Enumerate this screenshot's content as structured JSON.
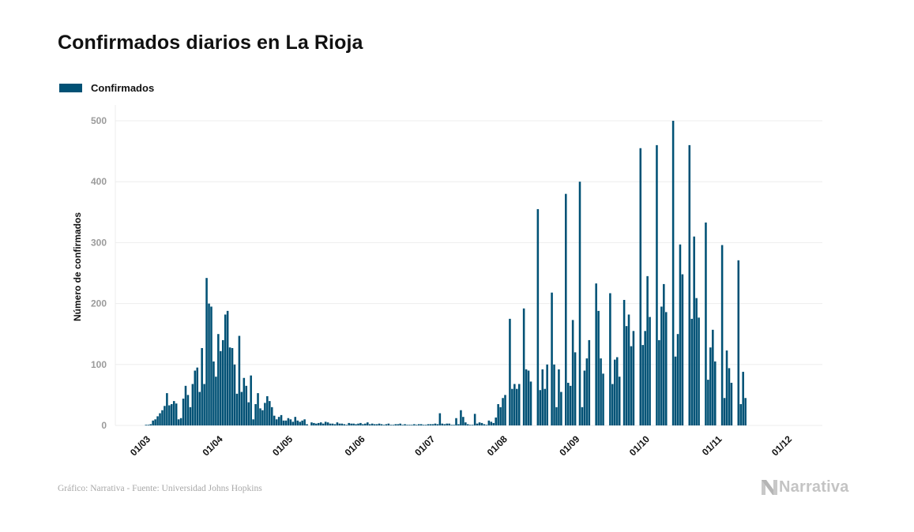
{
  "header": {
    "title": "Confirmados diarios en La Rioja"
  },
  "legend": {
    "items": [
      {
        "label": "Confirmados",
        "color": "#005175"
      }
    ]
  },
  "footer": {
    "source": "Gráfico: Narrativa - Fuente: Universidad Johns Hopkins",
    "logo_text": "Narrativa",
    "logo_icon": "narrativa-n-logo-icon"
  },
  "chart_data": {
    "type": "bar",
    "title": "Confirmados diarios en La Rioja",
    "xlabel": "",
    "ylabel": "Número de confirmados",
    "ylim": [
      0,
      525
    ],
    "yticks": [
      0,
      100,
      200,
      300,
      400,
      500
    ],
    "ytick_labels": [
      "0",
      "100",
      "200",
      "300",
      "400",
      "500"
    ],
    "grid": true,
    "legend_position": "top-left",
    "bar_color": "#005175",
    "x_start_date": "2020-03-01",
    "x_end_date": "2020-12-03",
    "xtick_labels": [
      "01/03",
      "01/04",
      "01/05",
      "01/06",
      "01/07",
      "01/08",
      "01/09",
      "01/10",
      "01/11",
      "01/12"
    ],
    "xtick_day_offsets": [
      0,
      31,
      61,
      92,
      122,
      153,
      184,
      214,
      245,
      275
    ],
    "series": [
      {
        "name": "Confirmados",
        "start_offset_days": -13,
        "values": [
          0,
          0,
          0,
          0,
          0,
          0,
          0,
          0,
          0,
          0,
          0,
          0,
          0,
          1,
          1,
          2,
          8,
          10,
          15,
          20,
          25,
          32,
          53,
          33,
          35,
          40,
          36,
          10,
          12,
          44,
          65,
          50,
          30,
          68,
          90,
          95,
          55,
          127,
          68,
          242,
          200,
          195,
          105,
          80,
          150,
          122,
          140,
          182,
          188,
          128,
          127,
          100,
          52,
          147,
          55,
          78,
          65,
          38,
          82,
          10,
          35,
          53,
          28,
          25,
          37,
          48,
          40,
          30,
          16,
          10,
          14,
          17,
          8,
          8,
          12,
          10,
          6,
          14,
          8,
          6,
          8,
          10,
          2,
          0,
          5,
          4,
          3,
          4,
          5,
          3,
          6,
          5,
          3,
          3,
          2,
          5,
          3,
          3,
          2,
          1,
          4,
          3,
          3,
          2,
          3,
          4,
          2,
          3,
          5,
          2,
          3,
          2,
          2,
          3,
          2,
          1,
          2,
          3,
          1,
          1,
          2,
          2,
          3,
          1,
          2,
          1,
          1,
          1,
          2,
          1,
          2,
          2,
          1,
          1,
          2,
          2,
          2,
          3,
          2,
          20,
          3,
          2,
          3,
          3,
          1,
          1,
          12,
          2,
          25,
          14,
          5,
          2,
          1,
          1,
          19,
          3,
          5,
          4,
          2,
          1,
          8,
          6,
          4,
          13,
          35,
          30,
          45,
          50,
          0,
          175,
          60,
          68,
          60,
          68,
          0,
          192,
          92,
          90,
          72,
          0,
          0,
          355,
          58,
          92,
          60,
          100,
          0,
          218,
          100,
          30,
          92,
          55,
          0,
          380,
          70,
          65,
          173,
          120,
          0,
          400,
          30,
          90,
          110,
          140,
          0,
          0,
          233,
          188,
          110,
          85,
          0,
          0,
          217,
          68,
          108,
          112,
          80,
          0,
          206,
          163,
          182,
          130,
          155,
          0,
          0,
          455,
          132,
          155,
          245,
          178,
          0,
          0,
          460,
          140,
          195,
          232,
          186,
          0,
          0,
          500,
          113,
          150,
          297,
          248,
          0,
          0,
          460,
          175,
          310,
          209,
          177,
          0,
          0,
          333,
          75,
          128,
          157,
          105,
          0,
          0,
          296,
          45,
          123,
          94,
          70,
          0,
          0,
          271,
          35,
          88,
          45
        ]
      }
    ]
  }
}
